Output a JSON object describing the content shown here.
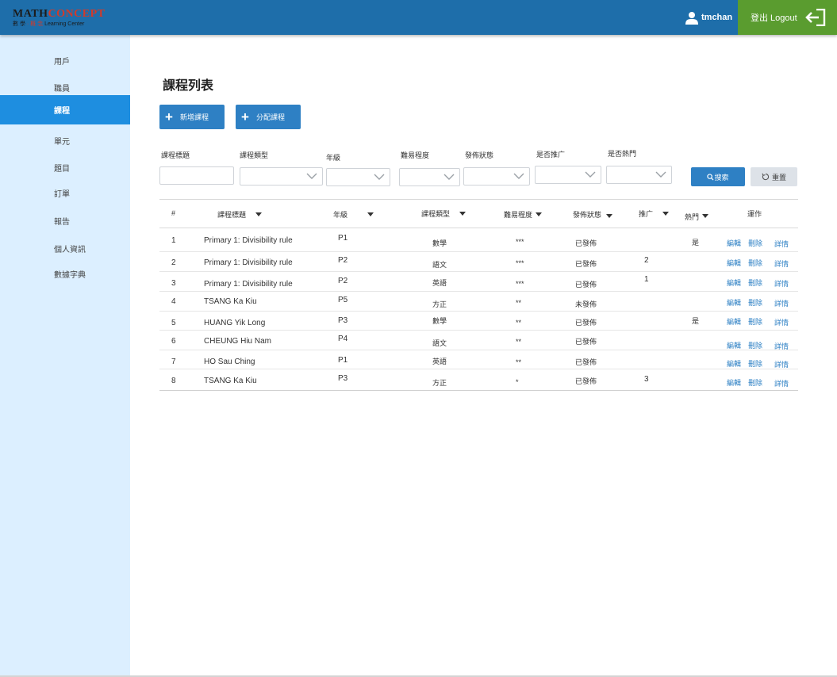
{
  "header": {
    "logo_main_dark": "MATH",
    "logo_main_red": "CONCEPT",
    "logo_sub_cn1": "數 學",
    "logo_sub_cn2": "· 概 念",
    "logo_sub_en": "Learning Center",
    "username": "tmchan",
    "logout_label": "登出 Logout"
  },
  "sidebar": {
    "items": [
      {
        "label": "用戶"
      },
      {
        "label": "職員"
      },
      {
        "label": "課程"
      },
      {
        "label": "單元"
      },
      {
        "label": "題目"
      },
      {
        "label": "訂單"
      },
      {
        "label": "報告"
      },
      {
        "label": "個人資訊"
      },
      {
        "label": "數據字典"
      }
    ],
    "active": "課程"
  },
  "page": {
    "title": "課程列表",
    "add_course_label": "新增課程",
    "assign_course_label": "分配課程"
  },
  "filters": {
    "title_label": "課程標題",
    "type_label": "課程類型",
    "grade_label": "年級",
    "difficulty_label": "難易程度",
    "status_label": "發佈狀態",
    "promote_label": "是否推广",
    "hot_label": "是否熱門",
    "search_label": "搜索",
    "reset_label": "重置"
  },
  "table": {
    "headers": {
      "index": "#",
      "title": "課程標題",
      "grade": "年級",
      "type": "課程類型",
      "difficulty": "難易程度",
      "status": "發佈狀態",
      "promote": "推广",
      "hot": "熱門",
      "actions": "運作"
    },
    "action_labels": {
      "edit": "編輯",
      "delete": "刪除",
      "detail": "詳情"
    },
    "rows": [
      {
        "index": "1",
        "title": "Primary 1: Divisibility rule",
        "grade": "P1",
        "type": "數學",
        "difficulty": "***",
        "status": "已發佈",
        "promote": "",
        "hot": "是"
      },
      {
        "index": "2",
        "title": "Primary 1: Divisibility rule",
        "grade": "P2",
        "type": "語文",
        "difficulty": "***",
        "status": "已發佈",
        "promote": "2",
        "hot": ""
      },
      {
        "index": "3",
        "title": "Primary 1: Divisibility rule",
        "grade": "P2",
        "type": "英語",
        "difficulty": "***",
        "status": "已發佈",
        "promote": "1",
        "hot": ""
      },
      {
        "index": "4",
        "title": "TSANG Ka Kiu",
        "grade": "P5",
        "type": "方正",
        "difficulty": "**",
        "status": "未發佈",
        "promote": "",
        "hot": ""
      },
      {
        "index": "5",
        "title": "HUANG Yik Long",
        "grade": "P3",
        "type": "數學",
        "difficulty": "**",
        "status": "已發佈",
        "promote": "",
        "hot": "是"
      },
      {
        "index": "6",
        "title": "CHEUNG Hiu Nam",
        "grade": "P4",
        "type": "語文",
        "difficulty": "**",
        "status": "已發佈",
        "promote": "",
        "hot": ""
      },
      {
        "index": "7",
        "title": "HO Sau Ching",
        "grade": "P1",
        "type": "英語",
        "difficulty": "**",
        "status": "已發佈",
        "promote": "",
        "hot": ""
      },
      {
        "index": "8",
        "title": "TSANG Ka Kiu",
        "grade": "P3",
        "type": "方正",
        "difficulty": "*",
        "status": "已發佈",
        "promote": "3",
        "hot": ""
      }
    ]
  }
}
